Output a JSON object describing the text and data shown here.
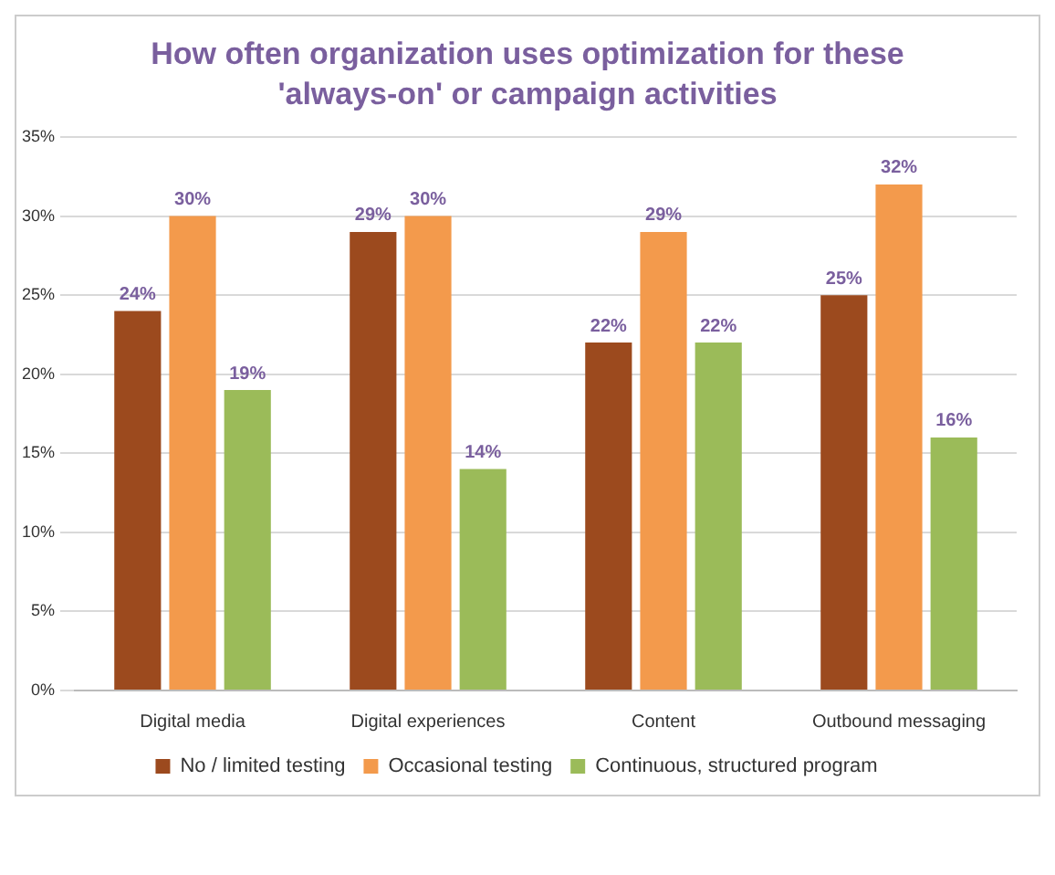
{
  "chart_data": {
    "type": "bar",
    "title": "How often organization uses optimization for these 'always-on' or campaign activities",
    "categories": [
      "Digital media",
      "Digital experiences",
      "Content",
      "Outbound messaging"
    ],
    "series": [
      {
        "name": "No / limited testing",
        "color": "#9c4a1e",
        "values": [
          24,
          29,
          22,
          25
        ],
        "value_labels": [
          "24%",
          "29%",
          "22%",
          "25%"
        ]
      },
      {
        "name": "Occasional testing",
        "color": "#f39a4c",
        "values": [
          30,
          30,
          29,
          32
        ],
        "value_labels": [
          "30%",
          "30%",
          "29%",
          "32%"
        ]
      },
      {
        "name": "Continuous, structured program",
        "color": "#9bbb59",
        "values": [
          19,
          14,
          22,
          16
        ],
        "value_labels": [
          "19%",
          "14%",
          "22%",
          "16%"
        ]
      }
    ],
    "ylim": [
      0,
      35
    ],
    "yticks": [
      {
        "value": 0,
        "label": "0%"
      },
      {
        "value": 5,
        "label": "5%"
      },
      {
        "value": 10,
        "label": "10%"
      },
      {
        "value": 15,
        "label": "15%"
      },
      {
        "value": 20,
        "label": "20%"
      },
      {
        "value": 25,
        "label": "25%"
      },
      {
        "value": 30,
        "label": "30%"
      },
      {
        "value": 35,
        "label": "35%"
      }
    ],
    "grid": "y",
    "legend": "bottom"
  }
}
